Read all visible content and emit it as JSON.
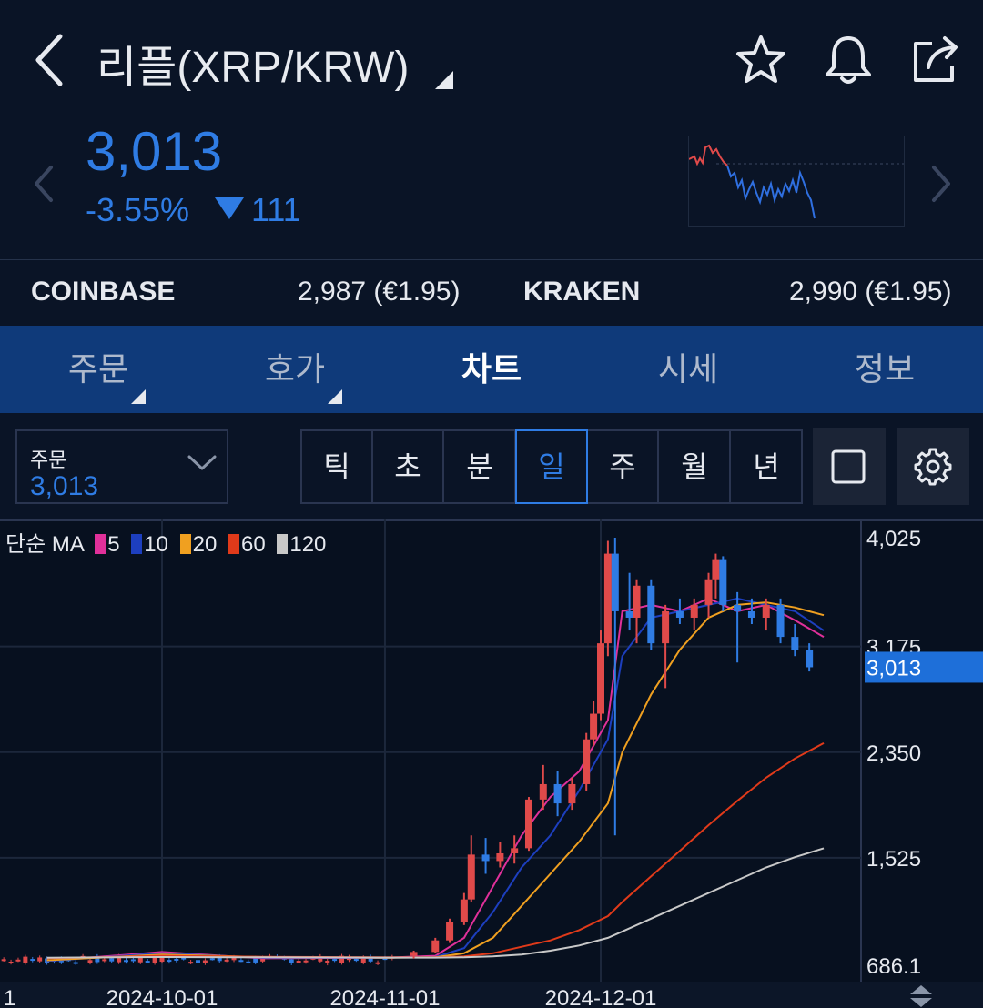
{
  "header": {
    "title": "리플(XRP/KRW)",
    "icons": [
      "back-chevron-icon",
      "star-icon",
      "bell-icon",
      "share-icon"
    ]
  },
  "price": {
    "current": "3,013",
    "change_pct": "-3.55%",
    "change_abs": "111",
    "direction": "down",
    "color_down": "#2f7ce4",
    "color_up": "#e04a4a"
  },
  "exchanges": [
    {
      "name": "COINBASE",
      "value": "2,987 (€1.95)"
    },
    {
      "name": "KRAKEN",
      "value": "2,990 (€1.95)"
    }
  ],
  "tabs": [
    {
      "label": "주문",
      "has_menu": true,
      "active": false
    },
    {
      "label": "호가",
      "has_menu": true,
      "active": false
    },
    {
      "label": "차트",
      "has_menu": false,
      "active": true
    },
    {
      "label": "시세",
      "has_menu": false,
      "active": false
    },
    {
      "label": "정보",
      "has_menu": false,
      "active": false
    }
  ],
  "order_selector": {
    "label": "주문",
    "value": "3,013"
  },
  "periods": [
    {
      "label": "틱",
      "active": false
    },
    {
      "label": "초",
      "active": false
    },
    {
      "label": "분",
      "active": false
    },
    {
      "label": "일",
      "active": true
    },
    {
      "label": "주",
      "active": false
    },
    {
      "label": "월",
      "active": false
    },
    {
      "label": "년",
      "active": false
    }
  ],
  "ma_legend": {
    "prefix": "단순 MA",
    "items": [
      {
        "period": "5",
        "color": "#e0309a"
      },
      {
        "period": "10",
        "color": "#1d3fbf"
      },
      {
        "period": "20",
        "color": "#f0a020"
      },
      {
        "period": "60",
        "color": "#e03a1a"
      },
      {
        "period": "120",
        "color": "#c8c8c8"
      }
    ]
  },
  "chart_data": {
    "type": "line",
    "title": "",
    "y_ticks": [
      "4,025",
      "3,175",
      "2,350",
      "1,525",
      "686.1"
    ],
    "y_tick_values": [
      4025,
      3175,
      2350,
      1525,
      686.1
    ],
    "ylim": [
      686.1,
      4025
    ],
    "x_ticks": [
      "1",
      "2024-10-01",
      "2024-11-01",
      "2024-12-01"
    ],
    "current_price_label": "3,013",
    "grid": true,
    "series": [
      {
        "name": "5",
        "x": [
          "2024-09-15",
          "2024-10-01",
          "2024-10-15",
          "2024-11-01",
          "2024-11-08",
          "2024-11-12",
          "2024-11-16",
          "2024-11-20",
          "2024-11-24",
          "2024-11-28",
          "2024-12-02",
          "2024-12-04",
          "2024-12-08",
          "2024-12-12",
          "2024-12-16",
          "2024-12-20",
          "2024-12-24",
          "2024-12-28",
          "2025-01-01"
        ],
        "values": [
          720,
          790,
          740,
          745,
          760,
          900,
          1300,
          1700,
          2000,
          2200,
          2600,
          3450,
          3500,
          3450,
          3550,
          3450,
          3500,
          3380,
          3250
        ]
      },
      {
        "name": "10",
        "x": [
          "2024-09-15",
          "2024-10-01",
          "2024-10-15",
          "2024-11-01",
          "2024-11-08",
          "2024-11-12",
          "2024-11-16",
          "2024-11-20",
          "2024-11-24",
          "2024-11-28",
          "2024-12-02",
          "2024-12-04",
          "2024-12-08",
          "2024-12-12",
          "2024-12-16",
          "2024-12-20",
          "2024-12-24",
          "2024-12-28",
          "2025-01-01"
        ],
        "values": [
          720,
          780,
          745,
          745,
          750,
          820,
          1100,
          1450,
          1700,
          2050,
          2450,
          3100,
          3400,
          3450,
          3500,
          3550,
          3500,
          3450,
          3300
        ]
      },
      {
        "name": "20",
        "x": [
          "2024-09-15",
          "2024-10-01",
          "2024-10-15",
          "2024-11-01",
          "2024-11-08",
          "2024-11-12",
          "2024-11-16",
          "2024-11-20",
          "2024-11-24",
          "2024-11-28",
          "2024-12-02",
          "2024-12-04",
          "2024-12-08",
          "2024-12-12",
          "2024-12-16",
          "2024-12-20",
          "2024-12-24",
          "2024-12-28",
          "2025-01-01"
        ],
        "values": [
          725,
          770,
          750,
          745,
          748,
          780,
          900,
          1150,
          1400,
          1650,
          1950,
          2350,
          2800,
          3150,
          3400,
          3500,
          3520,
          3480,
          3420
        ]
      },
      {
        "name": "60",
        "x": [
          "2024-09-15",
          "2024-10-01",
          "2024-10-15",
          "2024-11-01",
          "2024-11-08",
          "2024-11-12",
          "2024-11-16",
          "2024-11-20",
          "2024-11-24",
          "2024-11-28",
          "2024-12-02",
          "2024-12-04",
          "2024-12-08",
          "2024-12-12",
          "2024-12-16",
          "2024-12-20",
          "2024-12-24",
          "2024-12-28",
          "2025-01-01"
        ],
        "values": [
          740,
          760,
          752,
          748,
          748,
          755,
          780,
          830,
          880,
          960,
          1070,
          1180,
          1380,
          1580,
          1780,
          1970,
          2150,
          2300,
          2420
        ]
      },
      {
        "name": "120",
        "x": [
          "2024-09-15",
          "2024-10-01",
          "2024-10-15",
          "2024-11-01",
          "2024-11-08",
          "2024-11-12",
          "2024-11-16",
          "2024-11-20",
          "2024-11-24",
          "2024-11-28",
          "2024-12-02",
          "2024-12-04",
          "2024-12-08",
          "2024-12-12",
          "2024-12-16",
          "2024-12-20",
          "2024-12-24",
          "2024-12-28",
          "2025-01-01"
        ],
        "values": [
          745,
          750,
          748,
          746,
          746,
          748,
          755,
          770,
          800,
          840,
          900,
          950,
          1050,
          1150,
          1250,
          1350,
          1450,
          1530,
          1600
        ]
      }
    ],
    "candles": [
      {
        "date": "2024-11-05",
        "open": 760,
        "high": 800,
        "low": 740,
        "close": 790
      },
      {
        "date": "2024-11-08",
        "open": 790,
        "high": 900,
        "low": 780,
        "close": 880
      },
      {
        "date": "2024-11-10",
        "open": 880,
        "high": 1050,
        "low": 860,
        "close": 1020
      },
      {
        "date": "2024-11-12",
        "open": 1020,
        "high": 1250,
        "low": 1000,
        "close": 1200
      },
      {
        "date": "2024-11-13",
        "open": 1200,
        "high": 1700,
        "low": 1180,
        "close": 1550
      },
      {
        "date": "2024-11-15",
        "open": 1550,
        "high": 1680,
        "low": 1400,
        "close": 1500
      },
      {
        "date": "2024-11-17",
        "open": 1500,
        "high": 1650,
        "low": 1450,
        "close": 1560
      },
      {
        "date": "2024-11-19",
        "open": 1560,
        "high": 1700,
        "low": 1480,
        "close": 1600
      },
      {
        "date": "2024-11-21",
        "open": 1600,
        "high": 2000,
        "low": 1580,
        "close": 1980
      },
      {
        "date": "2024-11-23",
        "open": 1980,
        "high": 2250,
        "low": 1900,
        "close": 2100
      },
      {
        "date": "2024-11-25",
        "open": 2100,
        "high": 2200,
        "low": 1850,
        "close": 1950
      },
      {
        "date": "2024-11-27",
        "open": 1950,
        "high": 2150,
        "low": 1900,
        "close": 2100
      },
      {
        "date": "2024-11-29",
        "open": 2100,
        "high": 2500,
        "low": 2050,
        "close": 2450
      },
      {
        "date": "2024-11-30",
        "open": 2450,
        "high": 2750,
        "low": 2400,
        "close": 2650
      },
      {
        "date": "2024-12-01",
        "open": 2650,
        "high": 3300,
        "low": 2600,
        "close": 3200
      },
      {
        "date": "2024-12-02",
        "open": 3200,
        "high": 4000,
        "low": 3100,
        "close": 3900
      },
      {
        "date": "2024-12-03",
        "open": 3900,
        "high": 4025,
        "low": 1700,
        "close": 3450
      },
      {
        "date": "2024-12-05",
        "open": 3450,
        "high": 3750,
        "low": 3300,
        "close": 3400
      },
      {
        "date": "2024-12-06",
        "open": 3400,
        "high": 3700,
        "low": 3200,
        "close": 3650
      },
      {
        "date": "2024-12-08",
        "open": 3650,
        "high": 3700,
        "low": 3150,
        "close": 3200
      },
      {
        "date": "2024-12-10",
        "open": 3200,
        "high": 3500,
        "low": 2850,
        "close": 3450
      },
      {
        "date": "2024-12-12",
        "open": 3450,
        "high": 3550,
        "low": 3350,
        "close": 3400
      },
      {
        "date": "2024-12-14",
        "open": 3400,
        "high": 3550,
        "low": 3300,
        "close": 3500
      },
      {
        "date": "2024-12-16",
        "open": 3500,
        "high": 3750,
        "low": 3400,
        "close": 3700
      },
      {
        "date": "2024-12-17",
        "open": 3700,
        "high": 3900,
        "low": 3550,
        "close": 3850
      },
      {
        "date": "2024-12-18",
        "open": 3850,
        "high": 3880,
        "low": 3450,
        "close": 3500
      },
      {
        "date": "2024-12-20",
        "open": 3500,
        "high": 3600,
        "low": 3050,
        "close": 3450
      },
      {
        "date": "2024-12-22",
        "open": 3450,
        "high": 3550,
        "low": 3350,
        "close": 3400
      },
      {
        "date": "2024-12-24",
        "open": 3400,
        "high": 3550,
        "low": 3300,
        "close": 3500
      },
      {
        "date": "2024-12-26",
        "open": 3500,
        "high": 3550,
        "low": 3200,
        "close": 3250
      },
      {
        "date": "2024-12-28",
        "open": 3250,
        "high": 3350,
        "low": 3100,
        "close": 3150
      },
      {
        "date": "2024-12-30",
        "open": 3150,
        "high": 3200,
        "low": 2980,
        "close": 3013
      }
    ],
    "flat_region": {
      "from": "2024-09-01",
      "to": "2024-11-03",
      "low": 700,
      "high": 820
    }
  }
}
